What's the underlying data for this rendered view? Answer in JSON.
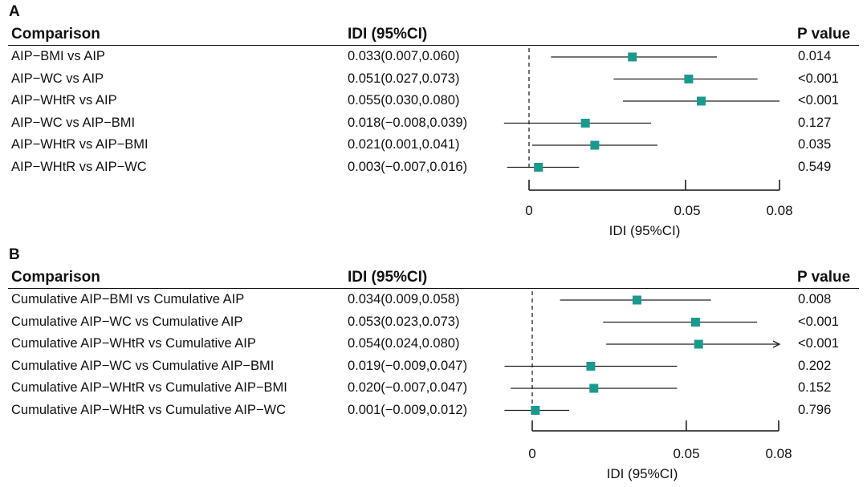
{
  "panels": [
    {
      "letter": "A",
      "headers": {
        "comparison": "Comparison",
        "idi": "IDI (95%CI)",
        "p": "P value"
      },
      "rows": [
        {
          "comparison": "AIP−BMI vs AIP",
          "idi_text": "0.033(0.007,0.060)",
          "p": "0.014"
        },
        {
          "comparison": "AIP−WC vs AIP",
          "idi_text": "0.051(0.027,0.073)",
          "p": "<0.001"
        },
        {
          "comparison": "AIP−WHtR vs AIP",
          "idi_text": "0.055(0.030,0.080)",
          "p": "<0.001"
        },
        {
          "comparison": "AIP−WC vs AIP−BMI",
          "idi_text": "0.018(−0.008,0.039)",
          "p": "0.127"
        },
        {
          "comparison": "AIP−WHtR vs AIP−BMI",
          "idi_text": "0.021(0.001,0.041)",
          "p": "0.035"
        },
        {
          "comparison": "AIP−WHtR vs AIP−WC",
          "idi_text": "0.003(−0.007,0.016)",
          "p": "0.549"
        }
      ],
      "axis": {
        "ticks": [
          "0",
          "0.05",
          "0.08"
        ],
        "label": "IDI (95%CI)"
      }
    },
    {
      "letter": "B",
      "headers": {
        "comparison": "Comparison",
        "idi": "IDI (95%CI)",
        "p": "P value"
      },
      "rows": [
        {
          "comparison": "Cumulative AIP−BMI vs Cumulative AIP",
          "idi_text": "0.034(0.009,0.058)",
          "p": "0.008"
        },
        {
          "comparison": "Cumulative AIP−WC vs Cumulative AIP",
          "idi_text": "0.053(0.023,0.073)",
          "p": "<0.001"
        },
        {
          "comparison": "Cumulative AIP−WHtR vs Cumulative AIP",
          "idi_text": "0.054(0.024,0.080)",
          "p": "<0.001"
        },
        {
          "comparison": "Cumulative AIP−WC vs Cumulative AIP−BMI",
          "idi_text": "0.019(−0.009,0.047)",
          "p": "0.202"
        },
        {
          "comparison": "Cumulative AIP−WHtR vs Cumulative AIP−BMI",
          "idi_text": "0.020(−0.007,0.047)",
          "p": "0.152"
        },
        {
          "comparison": "Cumulative AIP−WHtR vs Cumulative AIP−WC",
          "idi_text": "0.001(−0.009,0.012)",
          "p": "0.796"
        }
      ],
      "axis": {
        "ticks": [
          "0",
          "0.05",
          "0.08"
        ],
        "label": "IDI (95%CI)"
      }
    }
  ],
  "chart_data": [
    {
      "type": "forest",
      "panel": "A",
      "xlabel": "IDI (95%CI)",
      "xlim": [
        0,
        0.08
      ],
      "xticks": [
        0,
        0.05,
        0.08
      ],
      "reference_line": 0,
      "marker_color": "#1a9a8e",
      "rows": [
        {
          "label": "AIP−BMI vs AIP",
          "estimate": 0.033,
          "lower": 0.007,
          "upper": 0.06,
          "p": "0.014"
        },
        {
          "label": "AIP−WC vs AIP",
          "estimate": 0.051,
          "lower": 0.027,
          "upper": 0.073,
          "p": "<0.001"
        },
        {
          "label": "AIP−WHtR vs AIP",
          "estimate": 0.055,
          "lower": 0.03,
          "upper": 0.08,
          "p": "<0.001"
        },
        {
          "label": "AIP−WC vs AIP−BMI",
          "estimate": 0.018,
          "lower": -0.008,
          "upper": 0.039,
          "p": "0.127"
        },
        {
          "label": "AIP−WHtR vs AIP−BMI",
          "estimate": 0.021,
          "lower": 0.001,
          "upper": 0.041,
          "p": "0.035"
        },
        {
          "label": "AIP−WHtR vs AIP−WC",
          "estimate": 0.003,
          "lower": -0.007,
          "upper": 0.016,
          "p": "0.549"
        }
      ]
    },
    {
      "type": "forest",
      "panel": "B",
      "xlabel": "IDI (95%CI)",
      "xlim": [
        0,
        0.08
      ],
      "xticks": [
        0,
        0.05,
        0.08
      ],
      "reference_line": 0,
      "marker_color": "#1a9a8e",
      "rows": [
        {
          "label": "Cumulative AIP−BMI vs Cumulative AIP",
          "estimate": 0.034,
          "lower": 0.009,
          "upper": 0.058,
          "p": "0.008"
        },
        {
          "label": "Cumulative AIP−WC vs Cumulative AIP",
          "estimate": 0.053,
          "lower": 0.023,
          "upper": 0.073,
          "p": "<0.001"
        },
        {
          "label": "Cumulative AIP−WHtR vs Cumulative AIP",
          "estimate": 0.054,
          "lower": 0.024,
          "upper": 0.08,
          "p": "<0.001",
          "arrow": true
        },
        {
          "label": "Cumulative AIP−WC vs Cumulative AIP−BMI",
          "estimate": 0.019,
          "lower": -0.009,
          "upper": 0.047,
          "p": "0.202"
        },
        {
          "label": "Cumulative AIP−WHtR vs Cumulative AIP−BMI",
          "estimate": 0.02,
          "lower": -0.007,
          "upper": 0.047,
          "p": "0.152"
        },
        {
          "label": "Cumulative AIP−WHtR vs Cumulative AIP−WC",
          "estimate": 0.001,
          "lower": -0.009,
          "upper": 0.012,
          "p": "0.796"
        }
      ]
    }
  ]
}
